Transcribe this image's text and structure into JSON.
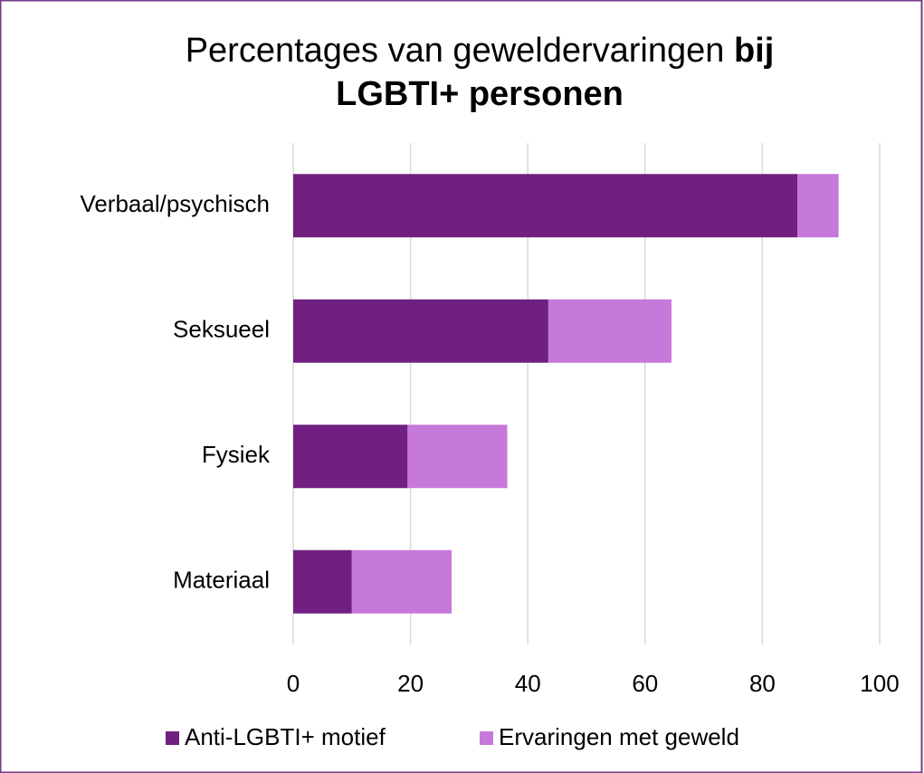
{
  "chart_data": {
    "type": "stacked-barh",
    "title": [
      "Percentages van geweldervaringen",
      "bij",
      "LGBTI+ personen"
    ],
    "categories": [
      "Verbaal/psychisch",
      "Seksueel",
      "Fysiek",
      "Materiaal"
    ],
    "series": [
      {
        "name": "Anti-LGBTI+ motief",
        "color": "#6f2080",
        "values": [
          86,
          43.5,
          19.5,
          10
        ]
      },
      {
        "name": "Ervaringen met geweld",
        "color": "#c778db",
        "values": [
          7,
          21,
          17,
          17
        ]
      }
    ],
    "xlim": [
      0,
      100
    ],
    "xticks": [
      0,
      20,
      40,
      60,
      80,
      100
    ],
    "grid": true
  }
}
